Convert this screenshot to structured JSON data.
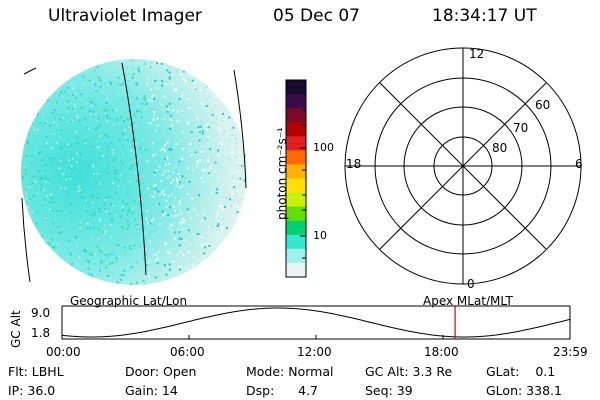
{
  "header": {
    "instrument": "Ultraviolet Imager",
    "date": "05 Dec 07",
    "time": "18:34:17 UT"
  },
  "colorbar": {
    "unit_label": "photon cm⁻²s⁻¹",
    "ticks": [
      "100",
      "10"
    ],
    "colors": [
      "#1a0a2e",
      "#3b0a4a",
      "#7a0a2a",
      "#b30000",
      "#e02020",
      "#ff6a00",
      "#ffb000",
      "#ffe000",
      "#c8f000",
      "#5fe000",
      "#00d070",
      "#30e8d0",
      "#a0f0f0",
      "#e8f4f4"
    ]
  },
  "polar_plot": {
    "mlt_labels": {
      "top": "12",
      "left": "18",
      "right": "6",
      "bottom": "0"
    },
    "lat_labels": [
      "60",
      "70",
      "80"
    ]
  },
  "orbit_plot": {
    "left_title": "Geographic Lat/Lon",
    "right_title": "Apex  MLat/MLT",
    "ylabel": "GC Alt",
    "y_ticks": [
      "9.0",
      "1.8"
    ],
    "x_ticks": [
      "00:00",
      "06:00",
      "12:00",
      "18:00",
      "23:59"
    ],
    "current_time_marker_hours": 18.57,
    "marker_color": "#cc0000"
  },
  "status": {
    "row1": [
      "Flt: LBHL",
      "Door: Open",
      "Mode: Normal",
      "GC Alt: 3.3 Re",
      "GLat:    0.1"
    ],
    "row2": [
      "IP: 36.0",
      "Gain: 14",
      "Dsp:      4.7",
      "Seq: 39",
      "GLon: 338.1"
    ]
  }
}
